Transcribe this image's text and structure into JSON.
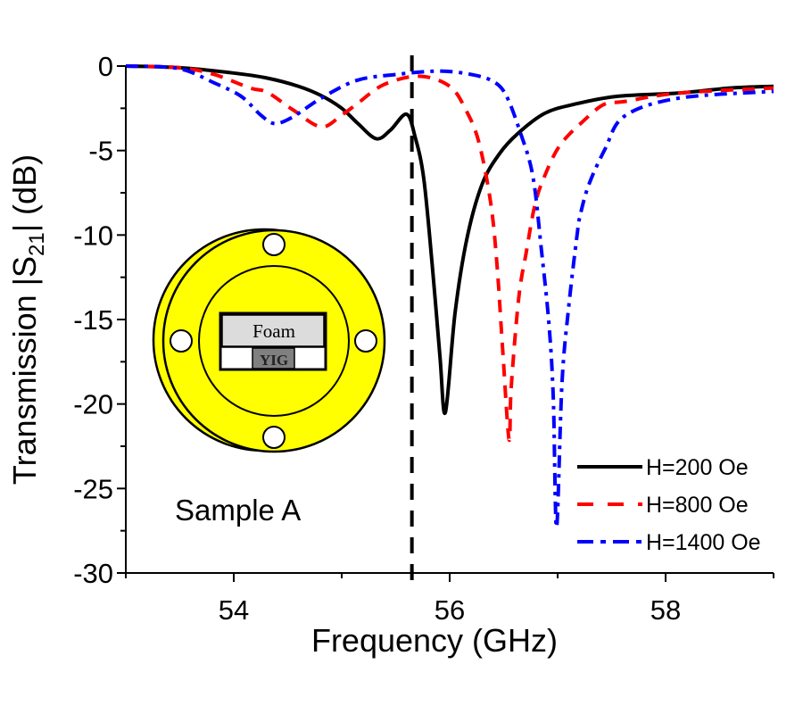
{
  "chart_data": {
    "type": "line",
    "title": "",
    "xlabel": "Frequency (GHz)",
    "ylabel_parts": {
      "pre": "Transmission |S",
      "sub": "21",
      "post": "| (dB)"
    },
    "ylabel": "Transmission |S21| (dB)",
    "xlim": [
      53,
      59
    ],
    "ylim": [
      -30,
      0
    ],
    "xticks": [
      54,
      56,
      58
    ],
    "xtick_labels": [
      "54",
      "56",
      "58"
    ],
    "xminor": [
      53,
      55,
      57,
      59
    ],
    "yticks": [
      0,
      -5,
      -10,
      -15,
      -20,
      -25,
      -30
    ],
    "ytick_labels": [
      "0",
      "-5",
      "-10",
      "-15",
      "-20",
      "-25",
      "-30"
    ],
    "yminor": [
      -2.5,
      -7.5,
      -12.5,
      -17.5,
      -22.5,
      -27.5
    ],
    "grid": false,
    "legend_position": "bottom-right",
    "vline": {
      "x": 55.65,
      "style": "dashed",
      "color": "#000000"
    },
    "annotation": "Sample A",
    "series": [
      {
        "name": "H=200 Oe",
        "color": "#000000",
        "style": "solid",
        "x": [
          53.0,
          53.5,
          53.98,
          54.3,
          54.6,
          54.81,
          55.0,
          55.15,
          55.32,
          55.45,
          55.6,
          55.68,
          55.76,
          55.84,
          55.91,
          55.96,
          56.05,
          56.16,
          56.3,
          56.46,
          56.63,
          56.88,
          57.15,
          57.54,
          58.12,
          58.6,
          59.0
        ],
        "y": [
          0.0,
          -0.1,
          -0.4,
          -0.7,
          -1.2,
          -1.75,
          -2.5,
          -3.4,
          -4.3,
          -3.8,
          -2.85,
          -4.2,
          -6.66,
          -11.9,
          -17.2,
          -20.5,
          -14.6,
          -10.2,
          -7.0,
          -5.2,
          -4.0,
          -2.8,
          -2.27,
          -1.8,
          -1.6,
          -1.3,
          -1.2
        ]
      },
      {
        "name": "H=800 Oe",
        "color": "#ff0000",
        "style": "dashed",
        "x": [
          53.0,
          53.5,
          53.82,
          54.15,
          54.31,
          54.55,
          54.81,
          55.0,
          55.14,
          55.39,
          55.72,
          56.0,
          56.15,
          56.27,
          56.38,
          56.44,
          56.49,
          56.55,
          56.57,
          56.64,
          56.71,
          56.79,
          56.88,
          57.02,
          57.23,
          57.43,
          57.62,
          58.12,
          59.0
        ],
        "y": [
          0.0,
          -0.1,
          -0.5,
          -1.3,
          -1.55,
          -2.6,
          -3.6,
          -2.9,
          -2.25,
          -1.1,
          -0.6,
          -1.2,
          -2.6,
          -4.5,
          -8.1,
          -11.9,
          -16.7,
          -22.1,
          -19.0,
          -13.7,
          -11.0,
          -8.2,
          -6.5,
          -4.7,
          -3.3,
          -2.27,
          -2.1,
          -1.6,
          -1.3
        ]
      },
      {
        "name": "H=1400 Oe",
        "color": "#0000ff",
        "style": "dashdot",
        "x": [
          53.0,
          53.49,
          53.82,
          54.07,
          54.25,
          54.38,
          54.55,
          54.81,
          55.14,
          55.5,
          55.9,
          56.2,
          56.4,
          56.52,
          56.65,
          56.77,
          56.85,
          56.92,
          56.96,
          56.99,
          57.04,
          57.1,
          57.18,
          57.21,
          57.29,
          57.44,
          57.62,
          58.12,
          59.0
        ],
        "y": [
          0.0,
          -0.15,
          -1.0,
          -1.8,
          -2.9,
          -3.4,
          -3.0,
          -1.9,
          -0.85,
          -0.5,
          -0.3,
          -0.5,
          -0.9,
          -1.7,
          -3.85,
          -6.5,
          -10.9,
          -15.3,
          -19.7,
          -27.3,
          -18.8,
          -14.4,
          -10.0,
          -8.8,
          -7.0,
          -4.9,
          -2.96,
          -1.9,
          -1.5
        ]
      }
    ]
  },
  "inset": {
    "foam_label": "Foam",
    "yig_label": "YIG",
    "colors": {
      "flange": "#ffff00",
      "foam": "#dcdcdc",
      "yig": "#808080"
    }
  }
}
